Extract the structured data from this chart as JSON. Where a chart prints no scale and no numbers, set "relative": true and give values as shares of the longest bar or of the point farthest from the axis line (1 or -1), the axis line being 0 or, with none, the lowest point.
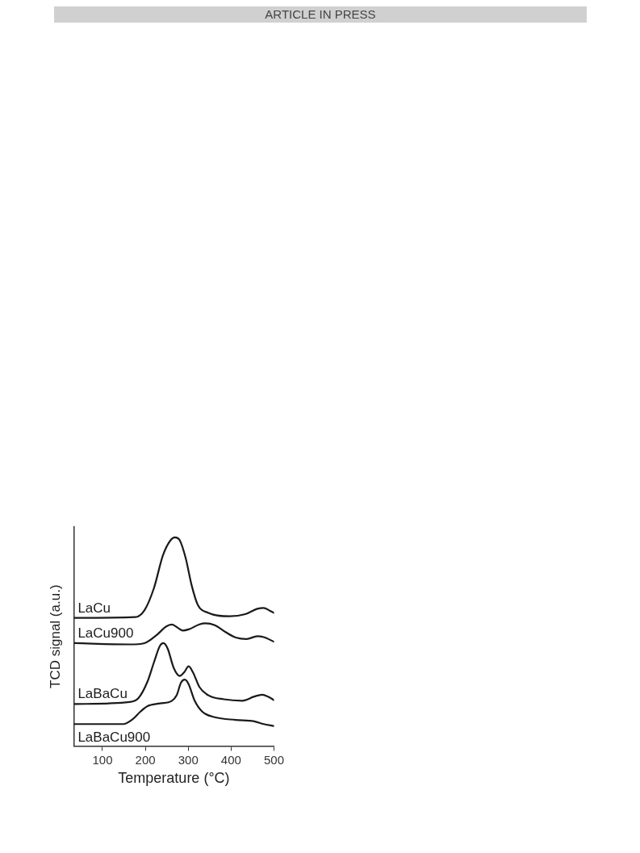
{
  "chart_data": {
    "type": "line",
    "relative": true,
    "xlabel": "Temperature (°C)",
    "ylabel": "TCD signal (a.u.)",
    "annotations": [
      "ARTICLE IN PRESS"
    ],
    "xlim": [
      33,
      500
    ],
    "xticks": [
      100,
      200,
      300,
      400,
      500
    ],
    "grid": false,
    "legend": false,
    "marker": "none",
    "line_style": "solid",
    "series": [
      {
        "name": "LaCu",
        "color": "#1a1a1a",
        "x": [
          35,
          177,
          198,
          220,
          241,
          259,
          269,
          280,
          294,
          308,
          322,
          347,
          397,
          433,
          461,
          476,
          490,
          500
        ],
        "values": [
          0.614,
          0.618,
          0.651,
          0.757,
          0.914,
          0.987,
          1,
          0.987,
          0.901,
          0.77,
          0.678,
          0.638,
          0.622,
          0.632,
          0.658,
          0.662,
          0.649,
          0.638
        ]
      },
      {
        "name": "LaCu900",
        "color": "#1a1a1a",
        "x": [
          35,
          163,
          198,
          227,
          248,
          262,
          276,
          287,
          301,
          326,
          340,
          362,
          387,
          411,
          436,
          461,
          476,
          500
        ],
        "values": [
          0.493,
          0.487,
          0.493,
          0.533,
          0.572,
          0.582,
          0.566,
          0.553,
          0.559,
          0.583,
          0.588,
          0.579,
          0.546,
          0.52,
          0.513,
          0.526,
          0.522,
          0.5
        ]
      },
      {
        "name": "LaBaCu",
        "color": "#1a1a1a",
        "x": [
          35,
          163,
          184,
          205,
          220,
          234,
          242,
          252,
          266,
          280,
          291,
          301,
          312,
          326,
          347,
          383,
          426,
          454,
          472,
          486,
          500
        ],
        "values": [
          0.201,
          0.211,
          0.23,
          0.309,
          0.401,
          0.48,
          0.493,
          0.467,
          0.375,
          0.336,
          0.355,
          0.382,
          0.349,
          0.283,
          0.243,
          0.224,
          0.217,
          0.237,
          0.246,
          0.237,
          0.22
        ]
      },
      {
        "name": "LaBaCu900",
        "color": "#1a1a1a",
        "x": [
          35,
          148,
          170,
          188,
          205,
          234,
          262,
          273,
          283,
          292,
          301,
          315,
          333,
          362,
          411,
          454,
          476,
          500
        ],
        "values": [
          0.105,
          0.105,
          0.128,
          0.164,
          0.191,
          0.204,
          0.217,
          0.243,
          0.303,
          0.318,
          0.296,
          0.217,
          0.164,
          0.138,
          0.125,
          0.118,
          0.105,
          0.096
        ]
      }
    ]
  }
}
